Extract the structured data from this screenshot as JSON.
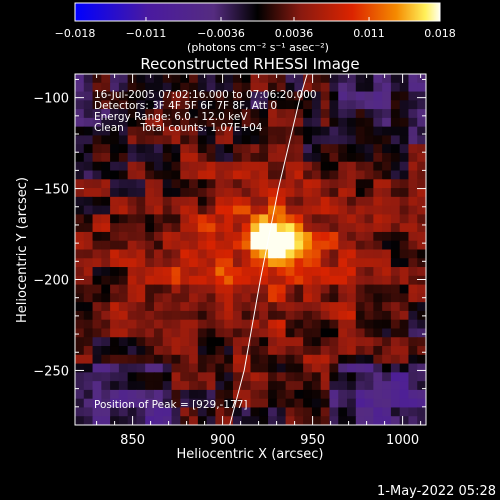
{
  "chart_data": {
    "type": "heatmap",
    "title": "Reconstructed RHESSI Image",
    "xlabel": "Heliocentric X (arcsec)",
    "ylabel": "Heliocentric Y (arcsec)",
    "xlim": [
      818,
      1013
    ],
    "ylim": [
      -280,
      -87
    ],
    "x_ticks": [
      {
        "value": 850,
        "label": "850"
      },
      {
        "value": 900,
        "label": "900"
      },
      {
        "value": 950,
        "label": "950"
      },
      {
        "value": 1000,
        "label": "1000"
      }
    ],
    "y_ticks": [
      {
        "value": -100,
        "label": "−100"
      },
      {
        "value": -150,
        "label": "−150"
      },
      {
        "value": -200,
        "label": "−200"
      },
      {
        "value": -250,
        "label": "−250"
      }
    ],
    "colorbar": {
      "min": -0.018,
      "max": 0.018,
      "ticks": [
        {
          "value": -0.018,
          "label": "−0.018"
        },
        {
          "value": -0.011,
          "label": "−0.011"
        },
        {
          "value": -0.0036,
          "label": "−0.0036"
        },
        {
          "value": 0.0036,
          "label": "0.0036"
        },
        {
          "value": 0.011,
          "label": "0.011"
        },
        {
          "value": 0.018,
          "label": "0.018"
        }
      ],
      "units_label": "(photons cm⁻² s⁻¹ asec⁻²)"
    },
    "annotations": [
      "16-Jul-2005 07:02:16.000 to 07:06:20.000",
      "Detectors: 3F 4F 5F 6F 7F 8F, Att 0",
      "Energy Range: 6.0 - 12.0 keV",
      "Clean     Total counts: 1.07E+04"
    ],
    "peak_label": "Position of Peak = [929,-177]",
    "peak": {
      "x": 929,
      "y": -177
    },
    "limb_curve": [
      [
        904,
        -280
      ],
      [
        912,
        -250
      ],
      [
        921,
        -200
      ],
      [
        931,
        -150
      ],
      [
        943,
        -100
      ],
      [
        947,
        -87
      ]
    ],
    "colormap": [
      "#0000ff",
      "#4a1aa0",
      "#552c80",
      "#000000",
      "#8a1a10",
      "#dc2400",
      "#f58a00",
      "#fff05a",
      "#fffff0"
    ],
    "timestamp": "1-May-2022 05:28"
  }
}
